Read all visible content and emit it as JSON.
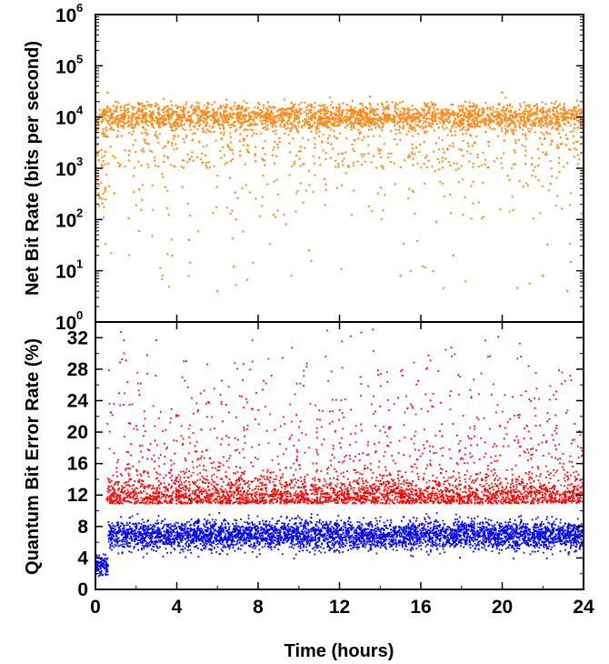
{
  "chart_data": [
    {
      "type": "scatter",
      "panel": "top",
      "ylabel": "Net Bit Rate (bits per second)",
      "xlabel": "",
      "yscale": "log",
      "ylim": [
        1,
        1000000
      ],
      "xlim": [
        0,
        24
      ],
      "y_ticks": [
        {
          "base": "10",
          "exp": "0",
          "value": 1
        },
        {
          "base": "10",
          "exp": "1",
          "value": 10
        },
        {
          "base": "10",
          "exp": "2",
          "value": 100
        },
        {
          "base": "10",
          "exp": "3",
          "value": 1000
        },
        {
          "base": "10",
          "exp": "4",
          "value": 10000
        },
        {
          "base": "10",
          "exp": "5",
          "value": 100000
        },
        {
          "base": "10",
          "exp": "6",
          "value": 1000000
        }
      ],
      "grid": false,
      "series": [
        {
          "color": "#ff8c1a",
          "approx_points": 3200,
          "typical_value": 10000,
          "typical_range": [
            3000,
            25000
          ],
          "min_value": 4,
          "max_value": 35000,
          "sample_points": [
            [
              0.1,
              1800
            ],
            [
              0.3,
              8000
            ],
            [
              0.6,
              30000
            ],
            [
              1.0,
              20000
            ],
            [
              2.5,
              12000
            ],
            [
              4.0,
              9000
            ],
            [
              4.6,
              40
            ],
            [
              6.0,
              4
            ],
            [
              6.8,
              12
            ],
            [
              8.0,
              15000
            ],
            [
              10.5,
              25
            ],
            [
              12.0,
              14000
            ],
            [
              13.5,
              25000
            ],
            [
              15.0,
              8
            ],
            [
              17.6,
              20
            ],
            [
              18.0,
              11000
            ],
            [
              20.0,
              30000
            ],
            [
              22.0,
              8
            ],
            [
              23.2,
              4
            ],
            [
              24.0,
              9000
            ]
          ]
        }
      ]
    },
    {
      "type": "scatter",
      "panel": "bottom",
      "ylabel": "Quantum Bit Error Rate (%)",
      "xlabel": "Time (hours)",
      "ylim": [
        0,
        34
      ],
      "xlim": [
        0,
        24
      ],
      "x_ticks": [
        "0",
        "4",
        "8",
        "12",
        "16",
        "20",
        "24"
      ],
      "y_ticks": [
        "0",
        "4",
        "8",
        "12",
        "16",
        "20",
        "24",
        "28",
        "32"
      ],
      "grid": false,
      "series": [
        {
          "color": "#ff0000",
          "approx_points": 3600,
          "threshold_min": 11,
          "typical_range": [
            11,
            16
          ],
          "max_value": 33.5,
          "sample_points": [
            [
              0.6,
              13
            ],
            [
              2.0,
              14.5
            ],
            [
              3.2,
              33
            ],
            [
              4.0,
              15
            ],
            [
              6.2,
              32
            ],
            [
              8.0,
              33
            ],
            [
              9.5,
              29
            ],
            [
              12.0,
              14
            ],
            [
              13.5,
              30
            ],
            [
              15.8,
              32
            ],
            [
              17.8,
              31
            ],
            [
              19.9,
              33.5
            ],
            [
              21.5,
              12
            ],
            [
              23.5,
              27
            ]
          ]
        },
        {
          "color": "#0000ff",
          "approx_points": 4500,
          "threshold_max": 11,
          "typical_range": [
            4.5,
            9.5
          ],
          "min_value": 1.8,
          "sample_points": [
            [
              0.2,
              2.5
            ],
            [
              0.5,
              3.5
            ],
            [
              1.0,
              7
            ],
            [
              3.0,
              8
            ],
            [
              6.0,
              6.5
            ],
            [
              8.0,
              6
            ],
            [
              10.0,
              7
            ],
            [
              12.0,
              6.5
            ],
            [
              12.4,
              4
            ],
            [
              14.0,
              6
            ],
            [
              16.0,
              7.5
            ],
            [
              20.0,
              7
            ],
            [
              22.0,
              6.5
            ],
            [
              24.0,
              7
            ]
          ]
        }
      ]
    }
  ]
}
